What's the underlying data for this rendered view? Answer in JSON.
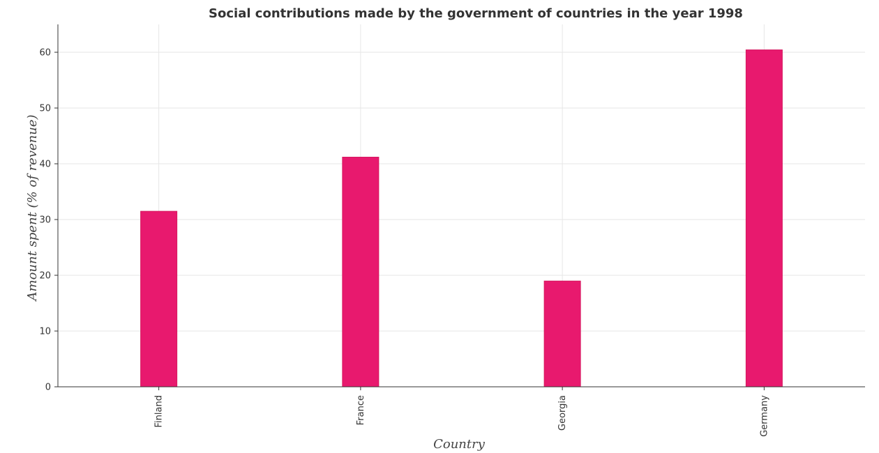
{
  "chart_data": {
    "type": "bar",
    "title": "Social contributions made by the government of countries in the year 1998",
    "xlabel": "Country",
    "ylabel": "Amount spent (% of revenue)",
    "categories": [
      "Finland",
      "France",
      "Georgia",
      "Germany"
    ],
    "values": [
      31.48,
      41.19,
      18.97,
      60.43
    ],
    "ylim": [
      0,
      65
    ],
    "yticks": [
      "0",
      "10",
      "20",
      "30",
      "40",
      "50",
      "60"
    ],
    "grid": true,
    "bar_color": "#e8196e",
    "bar_stroke": "#d6185f"
  }
}
